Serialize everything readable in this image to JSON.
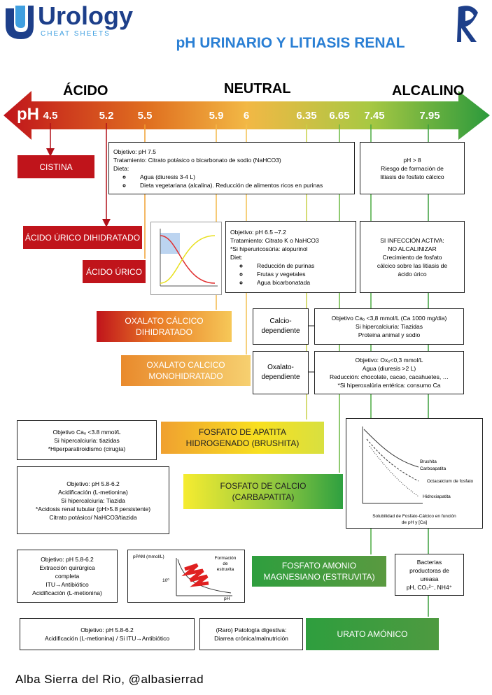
{
  "header": {
    "brand": "Urology",
    "tagline": "CHEAT SHEETS",
    "title": "pH URINARIO Y LITIASIS RENAL"
  },
  "scale": {
    "acid": "ÁCIDO",
    "neutral": "NEUTRAL",
    "alkaline": "ALCALINO",
    "unit": "pH",
    "ticks": [
      "4.5",
      "5.2",
      "5.5",
      "5.9",
      "6",
      "6.35",
      "6.65",
      "7.45",
      "7.95"
    ]
  },
  "stones": [
    {
      "lines": [
        "CISTINA"
      ]
    },
    {
      "lines": [
        "ÁCIDO ÚRICO DIHIDRATADO"
      ]
    },
    {
      "lines": [
        "ÁCIDO ÚRICO"
      ]
    },
    {
      "lines": [
        "OXALATO CÁLCICO",
        "DIHIDRATADO"
      ]
    },
    {
      "lines": [
        "OXALATO CALCICO",
        "MONOHIDRATADO"
      ]
    },
    {
      "lines": [
        "FOSFATO DE APATITA",
        "HIDROGENADO (BRUSHITA)"
      ]
    },
    {
      "lines": [
        "FOSFATO DE CALCIO",
        "(CARBAPATITA)"
      ]
    },
    {
      "lines": [
        "FOSFATO AMONIO",
        "MAGNESIANO (ESTRUVITA)"
      ]
    },
    {
      "lines": [
        "URATO AMÓNICO"
      ]
    }
  ],
  "notes": [
    {
      "lines": [
        "Objetivo: pH 7.5",
        "Tratamiento: Citrato potásico o bicarbonato de sodio (NaHCO3)",
        "Dieta:"
      ],
      "bullets": [
        "Agua (diuresis 3-4 L)",
        "Dieta vegetariana (alcalina). Reducción de alimentos ricos en purinas"
      ]
    },
    {
      "lines": [
        "pH > 8",
        "Riesgo de formación de",
        "litiasis de fosfato cálcico"
      ]
    },
    {
      "lines": [
        "Objetivo: pH 6.5 –7.2",
        "Tratamiento: Citrato K o NaHCO3",
        "*Si hiperuricosúria: alopurinol",
        "Diet:"
      ],
      "bullets": [
        "Reducción de purinas",
        "Frutas y vegetales",
        "Agua bicarbonatada"
      ]
    },
    {
      "lines": [
        "SI INFECCIÓN ACTIVA:",
        "NO ALCALINIZAR",
        "Crecimiento de fosfato",
        "cálcico sobre las litiasis de",
        "ácido úrico"
      ]
    },
    {
      "lines": [
        "Calcio-",
        "dependiente"
      ]
    },
    {
      "lines": [
        "Objetivo Caₒ <3,8 mmol/L (Ca 1000 mg/dia)",
        "Si hipercalciuria: Tiazidas",
        "Proteina animal y sodio"
      ]
    },
    {
      "lines": [
        "Oxalato-",
        "dependiente"
      ]
    },
    {
      "lines": [
        "Objetivo: Oxₒ<0,3 mmol/L",
        "Agua (diuresis >2 L)",
        "Reducción: chocolate, cacao, cacahuetes, …",
        "*Si hiperoxalúria entérica: consumo Ca"
      ]
    },
    {
      "lines": [
        "Objetivo Caₒ <3.8 mmol/L",
        "Si hipercalciuria: tiazidas",
        "*Hiperparatiroidismo (cirugía)"
      ]
    },
    {
      "lines": [
        "Objetivo: pH 5.8-6.2",
        "Acidificación (L-metionina)",
        "Si hipercalciuria: Tiazida",
        "*Acidosis renal tubular (pH>5.8 persistente)",
        "Citrato potásico/ NaHCO3/tiazida"
      ]
    },
    {
      "lines": [
        "Objetivo: pH 5.8-6.2",
        "Extracción quirúrgica",
        "completa",
        "ITU→Antibiótico",
        "Acidificación (L-metionina)"
      ]
    },
    {
      "lines": [
        "Bacterias",
        "productoras de",
        "ureasa",
        "pH, CO₃²⁻, NH4⁺"
      ]
    },
    {
      "lines": [
        "Objetivo: pH 5.8-6.2",
        "Acidificación (L-metionina) / Si ITU→Antibiótico"
      ]
    },
    {
      "lines": [
        "(Raro) Patología digestiva:",
        "Diarrea crónica/malnutrición"
      ]
    }
  ],
  "solubility_chart": {
    "curves": [
      "Brushita",
      "Carboapatita",
      "Octacalcium de fosfato",
      "Hidroxiapatita"
    ],
    "caption": [
      "Solubilidad de Fosfato-Cálcico en función",
      "de pH y [Ca]"
    ]
  },
  "struvite_chart": {
    "y_label": "pPAM (mmol/L)",
    "label": [
      "Formación",
      "de",
      "estruvita"
    ],
    "tick": "10⁰",
    "x_label": "pH"
  },
  "footer": "Alba Sierra del Rio, @albasierrad"
}
